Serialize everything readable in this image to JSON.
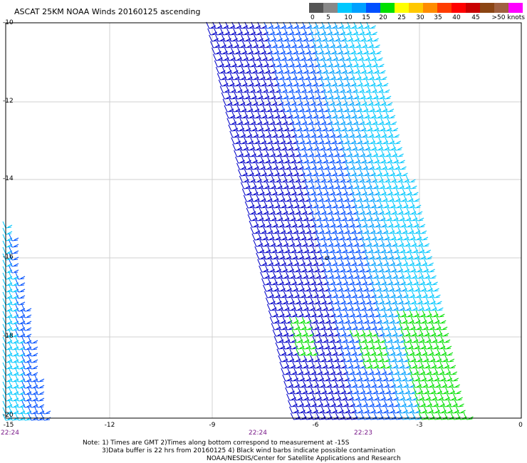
{
  "title": "ASCAT 25KM NOAA Winds 20160125 ascending",
  "legend": {
    "colors": [
      "#555555",
      "#888888",
      "#00c8ff",
      "#00a0ff",
      "#0050ff",
      "#00e000",
      "#ffff00",
      "#ffc800",
      "#ff8c00",
      "#ff3c00",
      "#ff0000",
      "#c80000",
      "#8b4513",
      "#a06040",
      "#ff00ff",
      "#c000ff",
      "#8000ff",
      "#400080",
      "#200040"
    ],
    "labels": [
      "0",
      "5",
      "10",
      "15",
      "20",
      "25",
      "30",
      "35",
      "40",
      "45",
      ">50 knots"
    ]
  },
  "map": {
    "lon_ticks": [
      "-15",
      "-12",
      "-9",
      "-6",
      "-3",
      "0"
    ],
    "lat_ticks": [
      "-10",
      "-12",
      "-14",
      "-16",
      "-18",
      "-20"
    ],
    "time_labels": [
      "22:24",
      "22:24",
      "22:23"
    ]
  },
  "notes": {
    "line1": "Note: 1) Times are GMT 2)Times along bottom correspond to measurement at -15S",
    "line2": "3)Data buffer is 22 hrs from 20160125 4) Black wind barbs indicate possible contamination",
    "line3": "NOAA/NESDIS/Center for Satellite Applications and Research"
  },
  "colors": {
    "dark_blue": "#0000c8",
    "mid_blue": "#0050ff",
    "light_blue": "#00a0ff",
    "cyan": "#00c8ff",
    "green": "#00e000",
    "grid": "#d0d0d0",
    "time": "#7a1a8a"
  }
}
